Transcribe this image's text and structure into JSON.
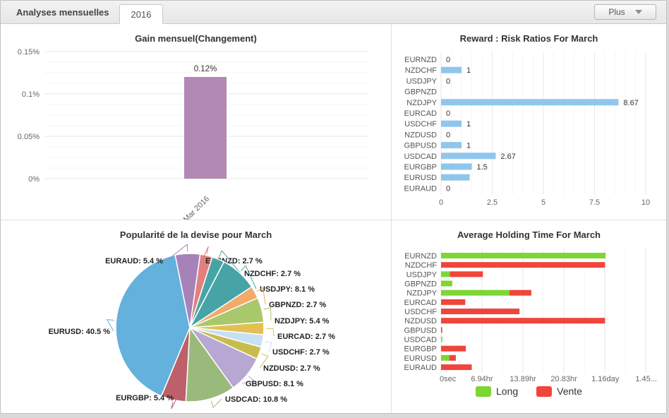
{
  "header": {
    "label": "Analyses mensuelles",
    "tab": "2016",
    "plus_label": "Plus"
  },
  "chart_data": [
    {
      "id": "gain",
      "type": "bar",
      "title": "Gain mensuel(Changement)",
      "categories": [
        "Mar 2016"
      ],
      "values": [
        0.12
      ],
      "bar_labels": [
        "0.12%"
      ],
      "bar_color": "#b288b4",
      "ylim": [
        0,
        0.15
      ],
      "yticks": [
        {
          "v": 0,
          "label": "0%"
        },
        {
          "v": 0.05,
          "label": "0.05%"
        },
        {
          "v": 0.1,
          "label": "0.1%"
        },
        {
          "v": 0.15,
          "label": "0.15%"
        }
      ],
      "grid": true
    },
    {
      "id": "risk",
      "type": "bar",
      "orientation": "horizontal",
      "title": "Reward : Risk Ratios For March",
      "categories": [
        "EURNZD",
        "NZDCHF",
        "USDJPY",
        "GBPNZD",
        "NZDJPY",
        "EURCAD",
        "USDCHF",
        "NZDUSD",
        "GBPUSD",
        "USDCAD",
        "EURGBP",
        "EURUSD",
        "EURAUD"
      ],
      "values": [
        0,
        1,
        0,
        null,
        8.67,
        0,
        1,
        0,
        1,
        2.67,
        1.5,
        1.4,
        0
      ],
      "value_labels": [
        "0",
        "1",
        "0",
        "",
        "8.67",
        "0",
        "1",
        "0",
        "1",
        "2.67",
        "1.5",
        "",
        "0"
      ],
      "bar_color": "#90c6ec",
      "xlim": [
        0,
        10
      ],
      "xticks": [
        {
          "v": 0,
          "label": "0"
        },
        {
          "v": 2.5,
          "label": "2.5"
        },
        {
          "v": 5,
          "label": "5"
        },
        {
          "v": 7.5,
          "label": "7.5"
        },
        {
          "v": 10,
          "label": "10"
        }
      ],
      "grid": true
    },
    {
      "id": "popularity",
      "type": "pie",
      "title": "Popularité de la devise pour March",
      "slices": [
        {
          "name": "EURNZD",
          "value": 2.7,
          "color": "#e2807f"
        },
        {
          "name": "NZDCHF",
          "value": 2.7,
          "color": "#47a4a6"
        },
        {
          "name": "USDJPY",
          "value": 8.1,
          "color": "#47a4a6"
        },
        {
          "name": "GBPNZD",
          "value": 2.7,
          "color": "#f3a96a"
        },
        {
          "name": "NZDJPY",
          "value": 5.4,
          "color": "#a9c86b"
        },
        {
          "name": "EURCAD",
          "value": 2.7,
          "color": "#e2c052"
        },
        {
          "name": "USDCHF",
          "value": 2.7,
          "color": "#c8e0f4"
        },
        {
          "name": "NZDUSD",
          "value": 2.7,
          "color": "#c8bc4d"
        },
        {
          "name": "GBPUSD",
          "value": 8.1,
          "color": "#b7a7d3"
        },
        {
          "name": "USDCAD",
          "value": 10.8,
          "color": "#9aba7b"
        },
        {
          "name": "EURGBP",
          "value": 5.4,
          "color": "#bd6069"
        },
        {
          "name": "EURUSD",
          "value": 40.5,
          "color": "#63b1dc"
        },
        {
          "name": "EURAUD",
          "value": 5.4,
          "color": "#a782b8"
        }
      ],
      "unit_suffix": " %"
    },
    {
      "id": "holding",
      "type": "bar",
      "orientation": "horizontal",
      "stacked": true,
      "title": "Average Holding Time For March",
      "categories": [
        "EURNZD",
        "NZDCHF",
        "USDJPY",
        "GBPNZD",
        "NZDJPY",
        "EURCAD",
        "USDCHF",
        "NZDUSD",
        "GBPUSD",
        "USDCAD",
        "EURGBP",
        "EURUSD",
        "EURAUD"
      ],
      "series": [
        {
          "name": "Long",
          "color": "#7cd634",
          "values_hours": [
            27.9,
            0,
            1.5,
            1.9,
            11.6,
            0,
            0,
            0,
            0,
            0.2,
            0,
            1.4,
            0
          ]
        },
        {
          "name": "Vente",
          "color": "#f0453b",
          "values_hours": [
            0,
            27.8,
            5.6,
            0,
            3.7,
            4.1,
            13.3,
            27.8,
            0.2,
            0,
            4.2,
            1.1,
            5.2
          ]
        }
      ],
      "xlim_hours": [
        0,
        34.8
      ],
      "xticks": [
        {
          "v": 0,
          "label": "0sec"
        },
        {
          "v": 6.94,
          "label": "6.94hr"
        },
        {
          "v": 13.89,
          "label": "13.89hr"
        },
        {
          "v": 20.83,
          "label": "20.83hr"
        },
        {
          "v": 27.84,
          "label": "1.16day"
        },
        {
          "v": 34.78,
          "label": "1.45..."
        }
      ],
      "legend_position": "bottom",
      "grid": true
    }
  ]
}
